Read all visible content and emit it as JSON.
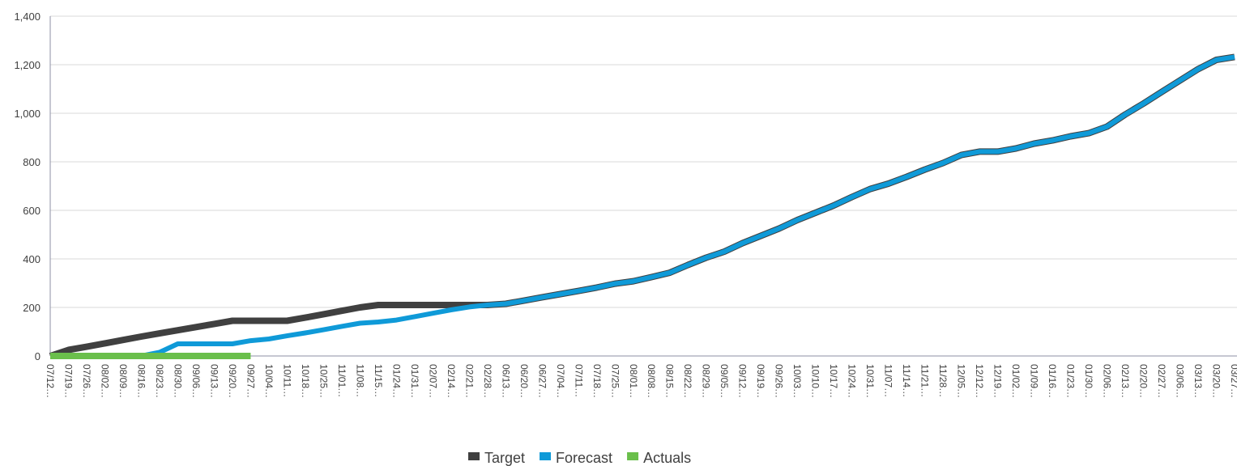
{
  "chart_data": {
    "type": "line",
    "categories": [
      "07/12…",
      "07/19…",
      "07/26…",
      "08/02…",
      "08/09…",
      "08/16…",
      "08/23…",
      "08/30…",
      "09/06…",
      "09/13…",
      "09/20…",
      "09/27…",
      "10/04…",
      "10/11…",
      "10/18…",
      "10/25…",
      "11/01…",
      "11/08…",
      "11/15…",
      "01/24…",
      "01/31…",
      "02/07…",
      "02/14…",
      "02/21…",
      "02/28…",
      "06/13…",
      "06/20…",
      "06/27…",
      "07/04…",
      "07/11…",
      "07/18…",
      "07/25…",
      "08/01…",
      "08/08…",
      "08/15…",
      "08/22…",
      "08/29…",
      "09/05…",
      "09/12…",
      "09/19…",
      "09/26…",
      "10/03…",
      "10/10…",
      "10/17…",
      "10/24…",
      "10/31…",
      "11/07…",
      "11/14…",
      "11/21…",
      "11/28…",
      "12/05…",
      "12/12…",
      "12/19…",
      "01/02…",
      "01/09…",
      "01/16…",
      "01/23…",
      "01/30…",
      "02/06…",
      "02/13…",
      "02/20…",
      "02/27…",
      "03/06…",
      "03/13…",
      "03/20…",
      "03/27…"
    ],
    "series": [
      {
        "name": "Target",
        "color": "#404040",
        "values": [
          0,
          25,
          38,
          52,
          66,
          80,
          93,
          106,
          119,
          132,
          145,
          145,
          145,
          145,
          158,
          172,
          186,
          200,
          210,
          210,
          210,
          210,
          210,
          210,
          210,
          215,
          228,
          242,
          255,
          268,
          282,
          298,
          308,
          325,
          343,
          375,
          405,
          430,
          465,
          495,
          525,
          560,
          590,
          620,
          655,
          688,
          710,
          738,
          768,
          795,
          828,
          842,
          842,
          855,
          875,
          888,
          905,
          918,
          945,
          995,
          1040,
          1088,
          1135,
          1182,
          1220,
          1232
        ]
      },
      {
        "name": "Forecast",
        "color": "#0f9ad8",
        "values": [
          0,
          0,
          0,
          0,
          0,
          0,
          15,
          50,
          50,
          50,
          50,
          63,
          70,
          83,
          95,
          108,
          122,
          135,
          140,
          148,
          162,
          176,
          190,
          202,
          210,
          215,
          228,
          242,
          255,
          268,
          282,
          298,
          308,
          325,
          343,
          375,
          405,
          430,
          465,
          495,
          525,
          560,
          590,
          620,
          655,
          688,
          710,
          738,
          768,
          795,
          828,
          842,
          842,
          855,
          875,
          888,
          905,
          918,
          945,
          995,
          1040,
          1088,
          1135,
          1182,
          1220,
          1232
        ]
      },
      {
        "name": "Actuals",
        "color": "#6abf4b",
        "values": [
          0,
          0,
          0,
          0,
          0,
          0,
          0,
          0,
          0,
          0,
          0,
          0,
          null,
          null,
          null,
          null,
          null,
          null,
          null,
          null,
          null,
          null,
          null,
          null,
          null,
          null,
          null,
          null,
          null,
          null,
          null,
          null,
          null,
          null,
          null,
          null,
          null,
          null,
          null,
          null,
          null,
          null,
          null,
          null,
          null,
          null,
          null,
          null,
          null,
          null,
          null,
          null,
          null,
          null,
          null,
          null,
          null,
          null,
          null,
          null,
          null,
          null,
          null,
          null,
          null,
          null
        ]
      }
    ],
    "ylim": [
      0,
      1400
    ],
    "yticks": [
      0,
      {
        "value": 200,
        "label": "200"
      },
      400,
      600,
      800,
      {
        "value": 1000,
        "label": "1,000"
      },
      {
        "value": 1200,
        "label": "1,200"
      },
      {
        "value": 1400,
        "label": "1,400"
      }
    ],
    "grid": true
  }
}
